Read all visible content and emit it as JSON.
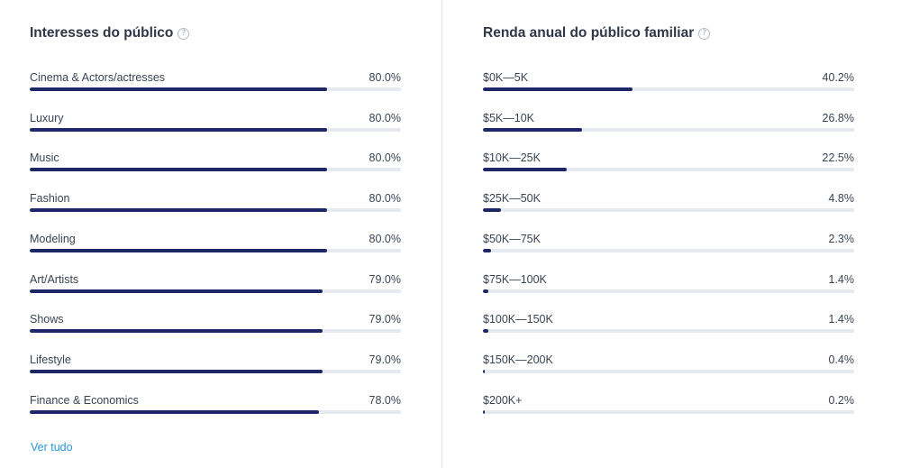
{
  "interests": {
    "title": "Interesses do público",
    "help_icon": "help-icon",
    "see_all_label": "Ver tudo",
    "items": [
      {
        "label": "Cinema & Actors/actresses",
        "value": "80.0%",
        "fraction": 0.8
      },
      {
        "label": "Luxury",
        "value": "80.0%",
        "fraction": 0.8
      },
      {
        "label": "Music",
        "value": "80.0%",
        "fraction": 0.8
      },
      {
        "label": "Fashion",
        "value": "80.0%",
        "fraction": 0.8
      },
      {
        "label": "Modeling",
        "value": "80.0%",
        "fraction": 0.8
      },
      {
        "label": "Art/Artists",
        "value": "79.0%",
        "fraction": 0.79
      },
      {
        "label": "Shows",
        "value": "79.0%",
        "fraction": 0.79
      },
      {
        "label": "Lifestyle",
        "value": "79.0%",
        "fraction": 0.79
      },
      {
        "label": "Finance & Economics",
        "value": "78.0%",
        "fraction": 0.78
      }
    ]
  },
  "income": {
    "title": "Renda anual do público familiar",
    "help_icon": "help-icon",
    "items": [
      {
        "label": "$0K—5K",
        "value": "40.2%",
        "fraction": 0.402
      },
      {
        "label": "$5K—10K",
        "value": "26.8%",
        "fraction": 0.268
      },
      {
        "label": "$10K—25K",
        "value": "22.5%",
        "fraction": 0.225
      },
      {
        "label": "$25K—50K",
        "value": "4.8%",
        "fraction": 0.048
      },
      {
        "label": "$50K—75K",
        "value": "2.3%",
        "fraction": 0.023
      },
      {
        "label": "$75K—100K",
        "value": "1.4%",
        "fraction": 0.014
      },
      {
        "label": "$100K—150K",
        "value": "1.4%",
        "fraction": 0.014
      },
      {
        "label": "$150K—200K",
        "value": "0.4%",
        "fraction": 0.004
      },
      {
        "label": "$200K+",
        "value": "0.2%",
        "fraction": 0.002
      }
    ]
  },
  "colors": {
    "bar_fill": "#1e2766",
    "bar_track": "#e6e9f0",
    "link": "#2a96d9"
  }
}
